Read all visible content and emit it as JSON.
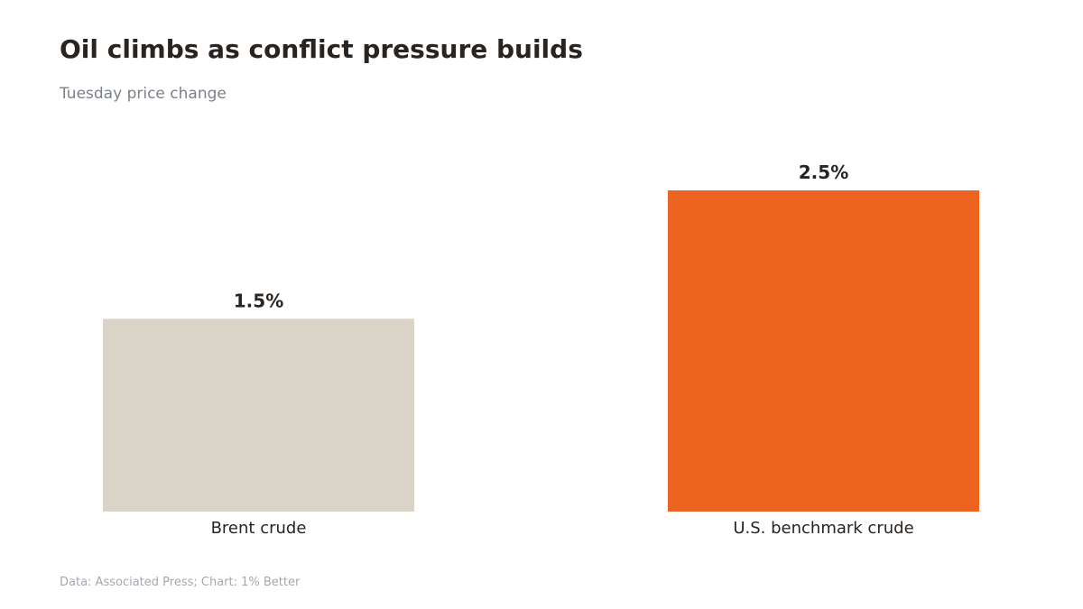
{
  "chart_data": {
    "type": "bar",
    "title": "Oil climbs as conflict pressure builds",
    "subtitle": "Tuesday price change",
    "categories": [
      "Brent crude",
      "U.S. benchmark crude"
    ],
    "values": [
      1.5,
      2.5
    ],
    "value_labels": [
      "1.5%",
      "2.5%"
    ],
    "bar_colors": [
      "#d9d3c8",
      "#ec6420"
    ],
    "xlabel": "",
    "ylabel": "",
    "ylim": [
      0,
      2.5
    ],
    "grid": false,
    "legend": "none"
  },
  "footer": {
    "source": "Data: Associated Press; Chart: 1% Better"
  }
}
